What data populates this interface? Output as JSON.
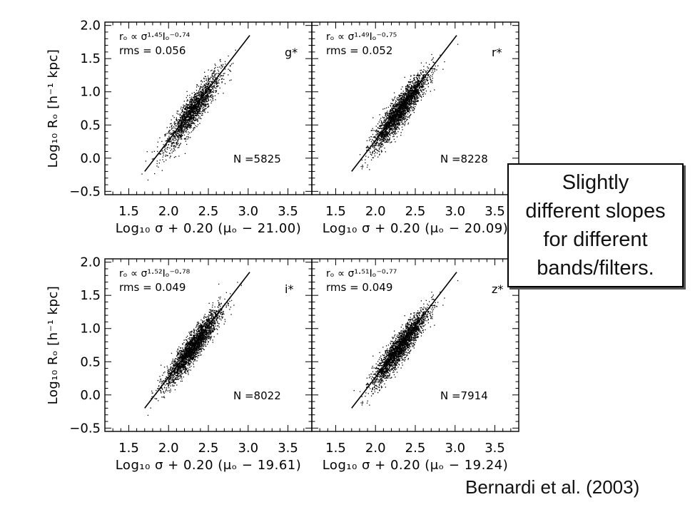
{
  "callout": {
    "text": "Slightly\ndifferent slopes\nfor different\nbands/filters."
  },
  "citation": "Bernardi et al. (2003)",
  "chart_data": [
    {
      "type": "scatter",
      "panel": "top-left",
      "band_label": "g*",
      "relation_text": "rₒ ∝ σ¹·⁴⁵Iₒ⁻⁰·⁷⁴",
      "rms_text": "rms = 0.056",
      "n_text": "N =5825",
      "xlabel": "Log₁₀ σ + 0.20 (μₒ − 21.00)",
      "ylabel": "Log₁₀ Rₒ [h⁻¹ kpc]",
      "xlim": [
        1.2,
        3.8
      ],
      "ylim": [
        -0.55,
        2.05
      ],
      "fit_line": {
        "x": [
          1.7,
          3.02
        ],
        "y": [
          -0.2,
          1.85
        ]
      },
      "cloud": {
        "x_center": 2.3,
        "y_center": 0.72,
        "slope": 1.45,
        "scatter": 0.056,
        "count": 5825
      }
    },
    {
      "type": "scatter",
      "panel": "top-right",
      "band_label": "r*",
      "relation_text": "rₒ ∝ σ¹·⁴⁹Iₒ⁻⁰·⁷⁵",
      "rms_text": "rms = 0.052",
      "n_text": "N =8228",
      "xlabel": "Log₁₀ σ + 0.20 (μₒ − 20.09)",
      "ylabel": "",
      "xlim": [
        1.2,
        3.8
      ],
      "ylim": [
        -0.55,
        2.05
      ],
      "fit_line": {
        "x": [
          1.7,
          3.02
        ],
        "y": [
          -0.2,
          1.85
        ]
      },
      "cloud": {
        "x_center": 2.3,
        "y_center": 0.72,
        "slope": 1.49,
        "scatter": 0.052,
        "count": 8228
      }
    },
    {
      "type": "scatter",
      "panel": "bottom-left",
      "band_label": "i*",
      "relation_text": "rₒ ∝ σ¹·⁵²Iₒ⁻⁰·⁷⁸",
      "rms_text": "rms = 0.049",
      "n_text": "N =8022",
      "xlabel": "Log₁₀ σ + 0.20 (μₒ − 19.61)",
      "ylabel": "Log₁₀ Rₒ [h⁻¹ kpc]",
      "xlim": [
        1.2,
        3.8
      ],
      "ylim": [
        -0.55,
        2.05
      ],
      "fit_line": {
        "x": [
          1.7,
          3.02
        ],
        "y": [
          -0.2,
          1.85
        ]
      },
      "cloud": {
        "x_center": 2.3,
        "y_center": 0.72,
        "slope": 1.52,
        "scatter": 0.049,
        "count": 8022
      }
    },
    {
      "type": "scatter",
      "panel": "bottom-right",
      "band_label": "z*",
      "relation_text": "rₒ ∝ σ¹·⁵¹Iₒ⁻⁰·⁷⁷",
      "rms_text": "rms = 0.049",
      "n_text": "N =7914",
      "xlabel": "Log₁₀ σ + 0.20 (μₒ − 19.24)",
      "ylabel": "",
      "xlim": [
        1.2,
        3.8
      ],
      "ylim": [
        -0.55,
        2.05
      ],
      "fit_line": {
        "x": [
          1.7,
          3.02
        ],
        "y": [
          -0.2,
          1.85
        ]
      },
      "cloud": {
        "x_center": 2.3,
        "y_center": 0.72,
        "slope": 1.51,
        "scatter": 0.049,
        "count": 7914
      }
    }
  ],
  "axes": {
    "x_ticks": [
      "1.5",
      "2.0",
      "2.5",
      "3.0",
      "3.5"
    ],
    "x_tick_values": [
      1.5,
      2.0,
      2.5,
      3.0,
      3.5
    ],
    "y_ticks": [
      "2.0",
      "1.5",
      "1.0",
      "0.5",
      "0.0",
      "−0.5"
    ],
    "y_tick_values": [
      2.0,
      1.5,
      1.0,
      0.5,
      0.0,
      -0.5
    ]
  }
}
